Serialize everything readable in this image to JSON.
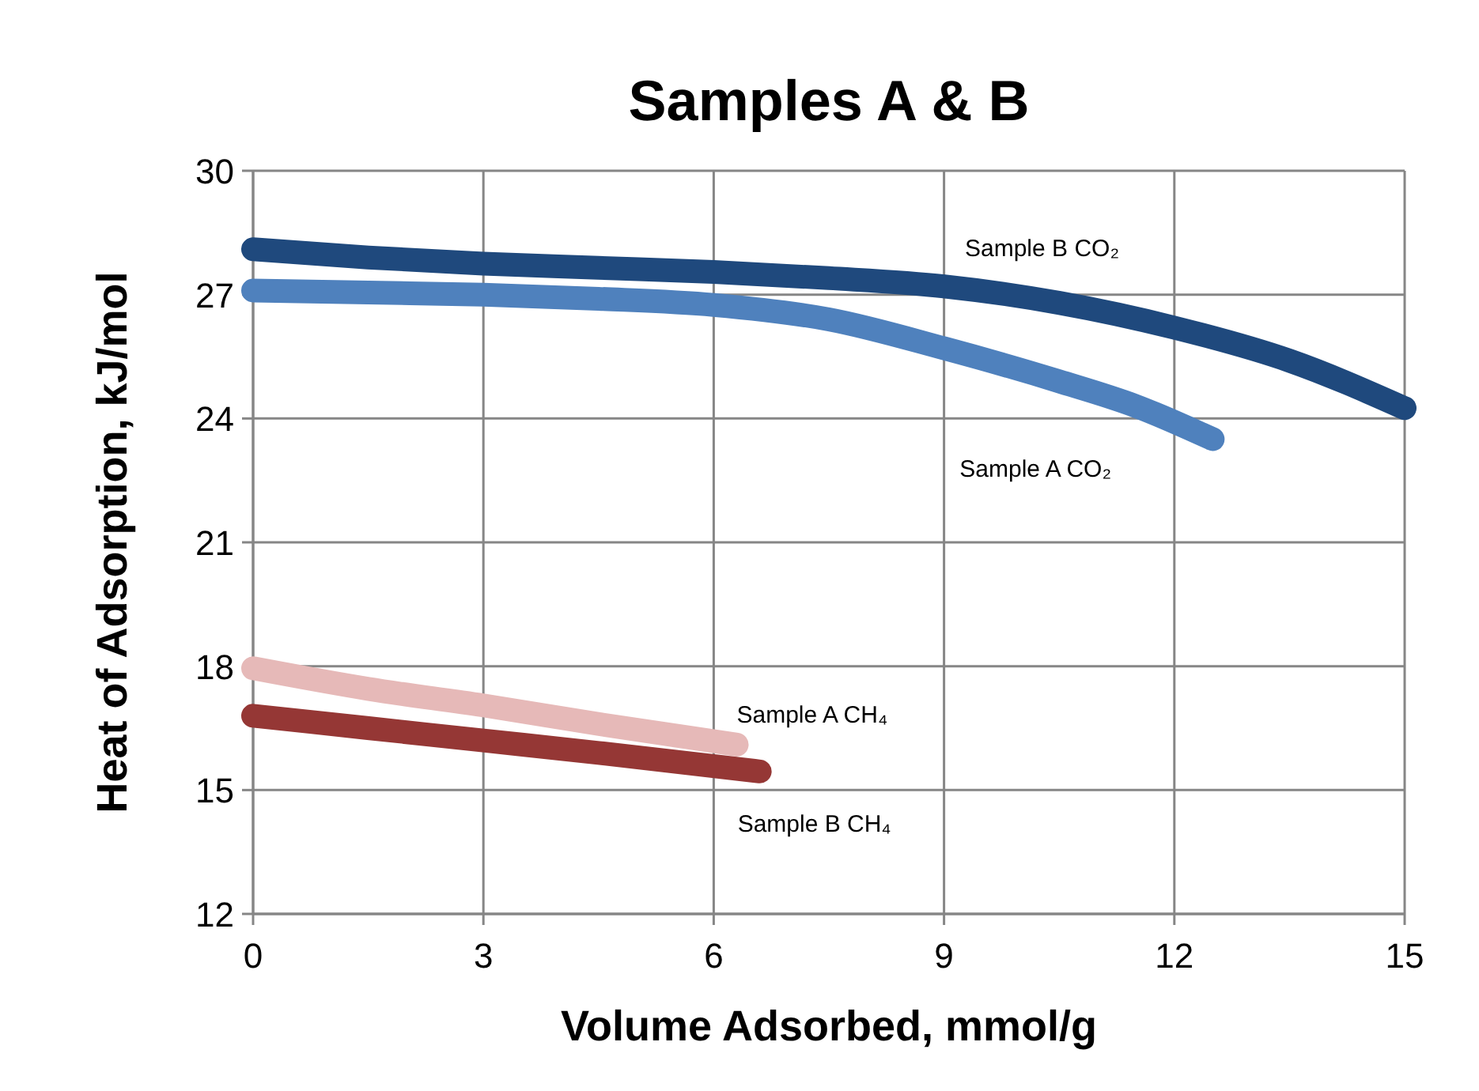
{
  "chart_data": {
    "type": "line",
    "title": "Samples A & B",
    "xlabel": "Volume Adsorbed, mmol/g",
    "ylabel": "Heat of Adsorption, kJ/mol",
    "xlim": [
      0,
      15
    ],
    "ylim": [
      12,
      30
    ],
    "xticks": [
      0,
      3,
      6,
      9,
      12,
      15
    ],
    "yticks": [
      12,
      15,
      18,
      21,
      24,
      27,
      30
    ],
    "grid": true,
    "line_style": "solid",
    "series": [
      {
        "name": "Sample B CO₂",
        "color": "#1f497d",
        "x": [
          0,
          1.5,
          3,
          4.5,
          6,
          7.5,
          9,
          10.5,
          12,
          13.5,
          15
        ],
        "values": [
          28.1,
          27.9,
          27.75,
          27.65,
          27.55,
          27.4,
          27.2,
          26.8,
          26.2,
          25.4,
          24.25
        ]
      },
      {
        "name": "Sample A CO₂",
        "color": "#4f81bd",
        "x": [
          0,
          1.5,
          3,
          4.5,
          6,
          7.5,
          9,
          10.5,
          11.5,
          12.5
        ],
        "values": [
          27.1,
          27.05,
          27.0,
          26.9,
          26.75,
          26.4,
          25.7,
          24.9,
          24.3,
          23.5
        ]
      },
      {
        "name": "Sample A CH₄",
        "color": "#e6b9b8",
        "x": [
          0,
          1.5,
          3,
          4.5,
          6.3
        ],
        "values": [
          17.95,
          17.45,
          17.05,
          16.6,
          16.1
        ]
      },
      {
        "name": "Sample B CH₄",
        "color": "#953735",
        "x": [
          0,
          1.5,
          3,
          4.5,
          6.6
        ],
        "values": [
          16.8,
          16.5,
          16.2,
          15.9,
          15.45
        ]
      }
    ]
  }
}
